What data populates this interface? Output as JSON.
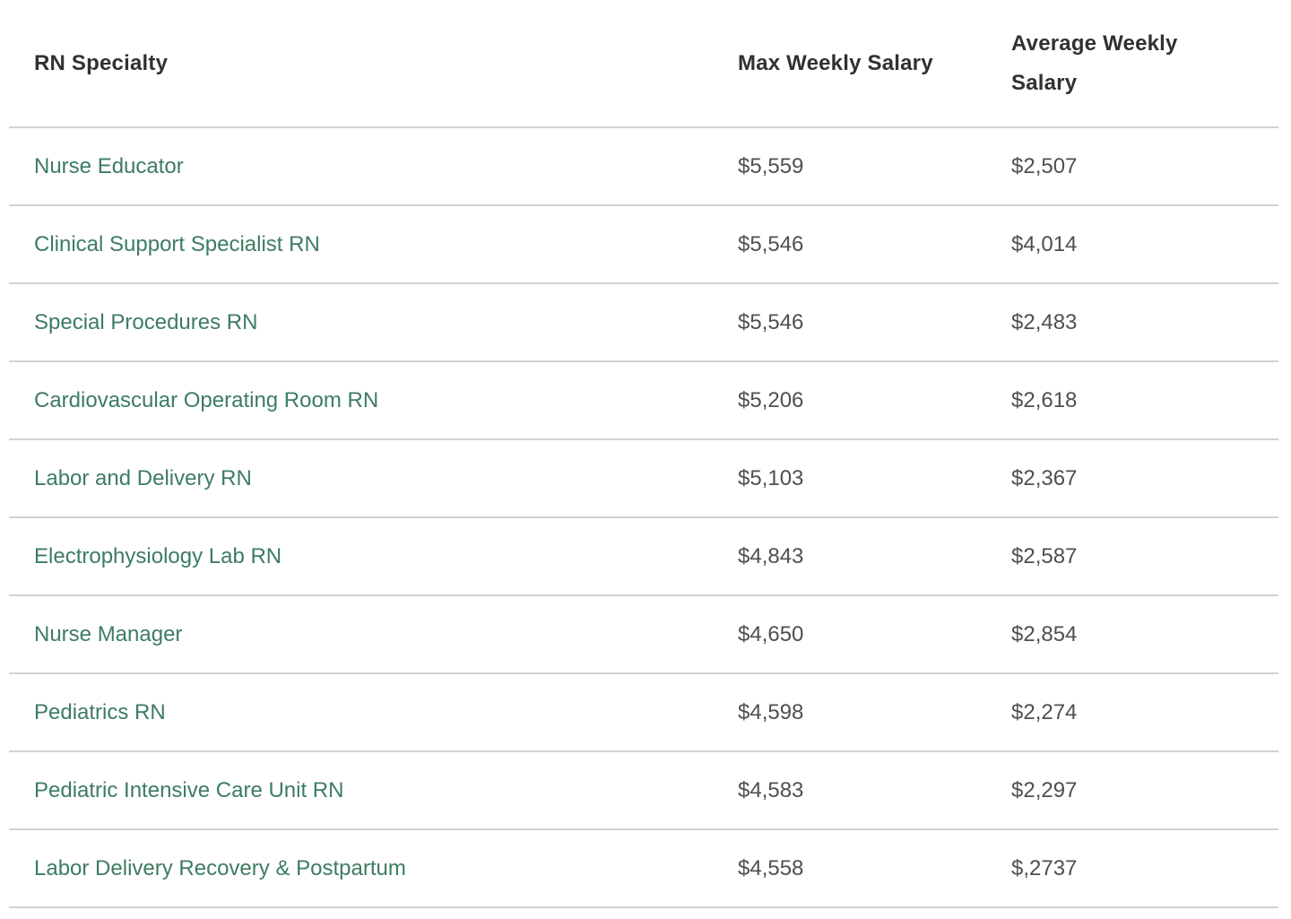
{
  "table": {
    "columns": [
      {
        "label": "RN Specialty"
      },
      {
        "label": "Max Weekly Salary"
      },
      {
        "label": "Average Weekly Salary"
      }
    ],
    "rows": [
      {
        "specialty": "Nurse Educator",
        "max_weekly": "$5,559",
        "avg_weekly": "$2,507"
      },
      {
        "specialty": "Clinical Support Specialist RN",
        "max_weekly": "$5,546",
        "avg_weekly": "$4,014"
      },
      {
        "specialty": "Special Procedures RN",
        "max_weekly": "$5,546",
        "avg_weekly": "$2,483"
      },
      {
        "specialty": "Cardiovascular Operating Room RN",
        "max_weekly": "$5,206",
        "avg_weekly": "$2,618"
      },
      {
        "specialty": "Labor and Delivery RN",
        "max_weekly": "$5,103",
        "avg_weekly": "$2,367"
      },
      {
        "specialty": "Electrophysiology Lab RN",
        "max_weekly": "$4,843",
        "avg_weekly": "$2,587"
      },
      {
        "specialty": "Nurse Manager",
        "max_weekly": "$4,650",
        "avg_weekly": "$2,854"
      },
      {
        "specialty": "Pediatrics RN",
        "max_weekly": "$4,598",
        "avg_weekly": "$2,274"
      },
      {
        "specialty": "Pediatric Intensive Care Unit RN",
        "max_weekly": "$4,583",
        "avg_weekly": "$2,297"
      },
      {
        "specialty": "Labor Delivery Recovery & Postpartum",
        "max_weekly": "$4,558",
        "avg_weekly": "$,2737"
      }
    ],
    "colors": {
      "link_green": "#3d7c61",
      "header_text": "#2f3133",
      "value_text": "#4d4f52",
      "divider": "#d2d2d2"
    }
  }
}
